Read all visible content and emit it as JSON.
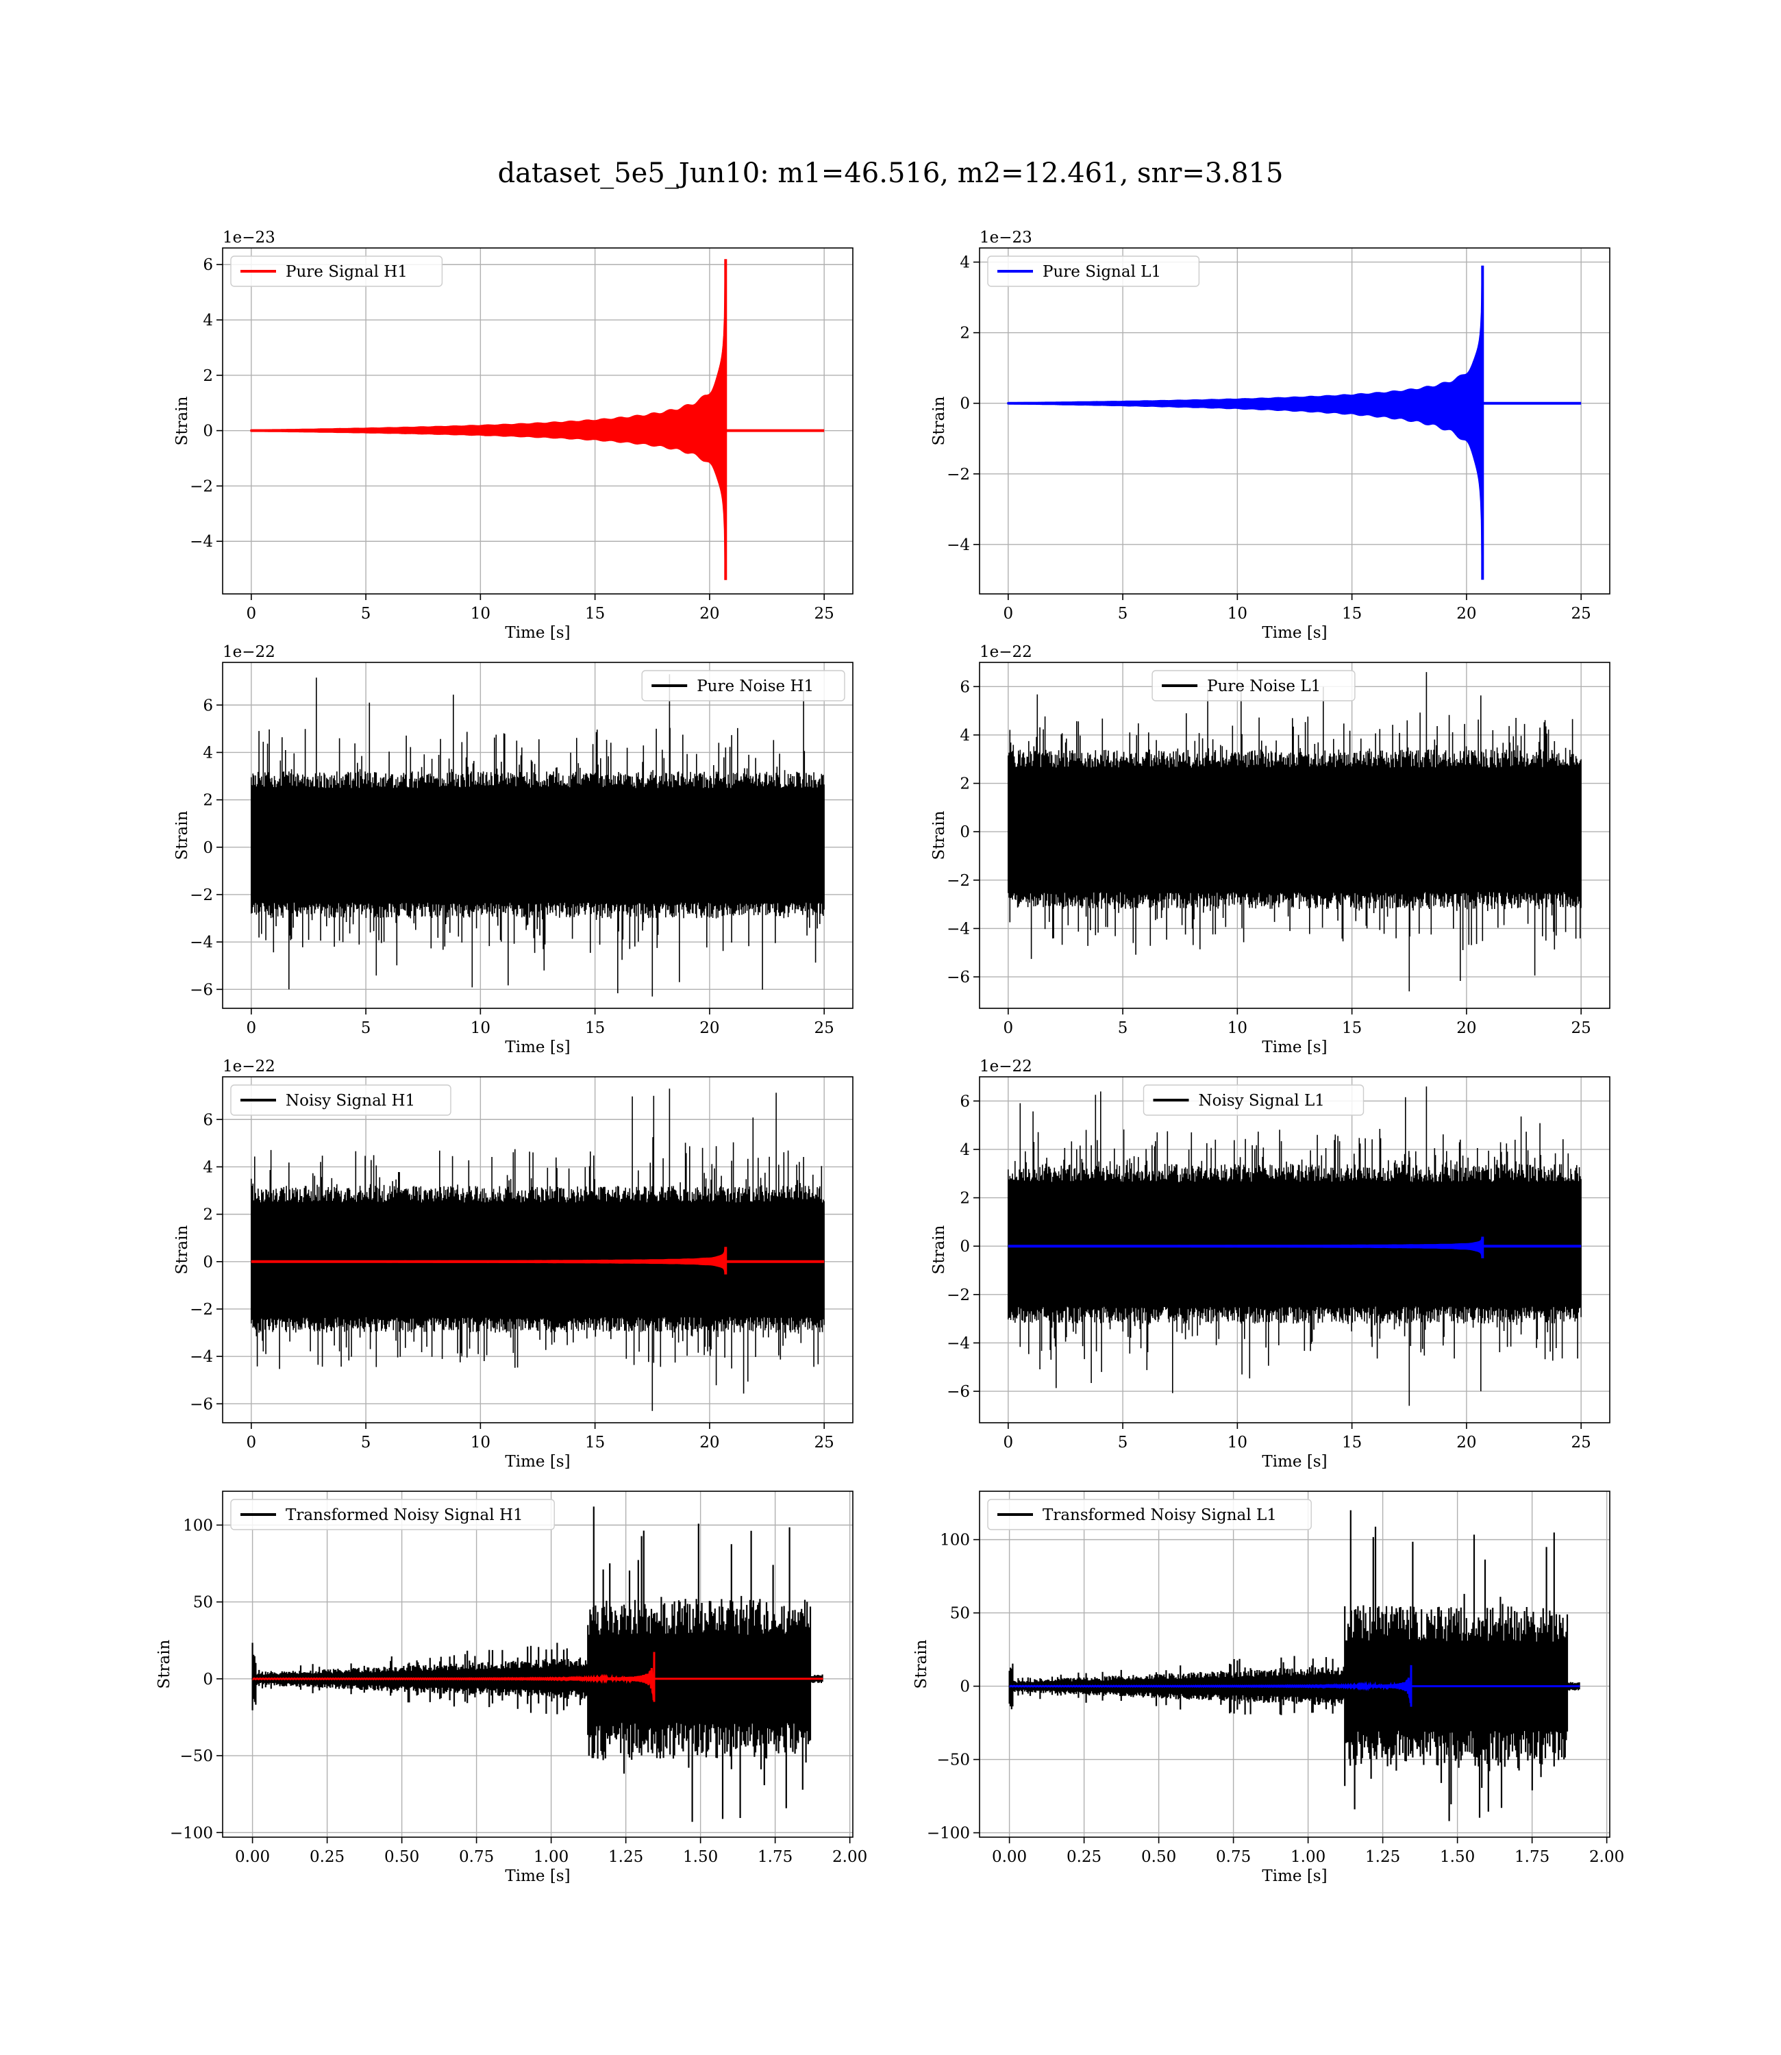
{
  "figure": {
    "title": "dataset_5e5_Jun10: m1=46.516, m2=12.461, snr=3.815"
  },
  "chart_data": [
    {
      "type": "line",
      "title": "",
      "xlabel": "Time [s]",
      "ylabel": "Strain",
      "offset_label": "1e−23",
      "xlim": [
        -1.25,
        26.25
      ],
      "ylim": [
        -5.9,
        6.6
      ],
      "xticks": [
        0,
        5,
        10,
        15,
        20,
        25
      ],
      "xtick_labels": [
        "0",
        "5",
        "10",
        "15",
        "20",
        "25"
      ],
      "yticks": [
        -4,
        -2,
        0,
        2,
        4,
        6
      ],
      "ytick_labels": [
        "−4",
        "−2",
        "0",
        "2",
        "4",
        "6"
      ],
      "grid": true,
      "legend_position": "upper-left",
      "series": [
        {
          "name": "Pure Signal H1",
          "color": "#ff0000",
          "kind": "chirp",
          "x_start": 0,
          "x_end": 25,
          "merger_time": 20.7,
          "start_amp": 0.02,
          "peak_pos": 6.2,
          "peak_neg": -5.4
        }
      ]
    },
    {
      "type": "line",
      "title": "",
      "xlabel": "Time [s]",
      "ylabel": "Strain",
      "offset_label": "1e−23",
      "xlim": [
        -1.25,
        26.25
      ],
      "ylim": [
        -5.4,
        4.4
      ],
      "xticks": [
        0,
        5,
        10,
        15,
        20,
        25
      ],
      "xtick_labels": [
        "0",
        "5",
        "10",
        "15",
        "20",
        "25"
      ],
      "yticks": [
        -4,
        -2,
        0,
        2,
        4
      ],
      "ytick_labels": [
        "−4",
        "−2",
        "0",
        "2",
        "4"
      ],
      "grid": true,
      "legend_position": "upper-left",
      "series": [
        {
          "name": "Pure Signal L1",
          "color": "#0000ff",
          "kind": "chirp",
          "x_start": 0,
          "x_end": 25,
          "merger_time": 20.7,
          "start_amp": 0.015,
          "peak_pos": 3.9,
          "peak_neg": -5.0
        }
      ]
    },
    {
      "type": "line",
      "title": "",
      "xlabel": "Time [s]",
      "ylabel": "Strain",
      "offset_label": "1e−22",
      "xlim": [
        -1.25,
        26.25
      ],
      "ylim": [
        -6.8,
        7.8
      ],
      "xticks": [
        0,
        5,
        10,
        15,
        20,
        25
      ],
      "xtick_labels": [
        "0",
        "5",
        "10",
        "15",
        "20",
        "25"
      ],
      "yticks": [
        -6,
        -4,
        -2,
        0,
        2,
        4,
        6
      ],
      "ytick_labels": [
        "−6",
        "−4",
        "−2",
        "0",
        "2",
        "4",
        "6"
      ],
      "grid": true,
      "legend_position": "upper-right",
      "series": [
        {
          "name": "Pure Noise H1",
          "color": "#000000",
          "kind": "noise",
          "x_start": 0,
          "x_end": 25,
          "band_pos": 3.2,
          "band_neg": -3.0,
          "spike_max": 7.3,
          "spike_min": -6.3
        }
      ]
    },
    {
      "type": "line",
      "title": "",
      "xlabel": "Time [s]",
      "ylabel": "Strain",
      "offset_label": "1e−22",
      "xlim": [
        -1.25,
        26.25
      ],
      "ylim": [
        -7.3,
        7.0
      ],
      "xticks": [
        0,
        5,
        10,
        15,
        20,
        25
      ],
      "xtick_labels": [
        "0",
        "5",
        "10",
        "15",
        "20",
        "25"
      ],
      "yticks": [
        -6,
        -4,
        -2,
        0,
        2,
        4,
        6
      ],
      "ytick_labels": [
        "−6",
        "−4",
        "−2",
        "0",
        "2",
        "4",
        "6"
      ],
      "grid": true,
      "legend_position": "upper-center",
      "series": [
        {
          "name": "Pure Noise L1",
          "color": "#000000",
          "kind": "noise",
          "x_start": 0,
          "x_end": 25,
          "band_pos": 3.4,
          "band_neg": -3.2,
          "spike_max": 6.6,
          "spike_min": -6.6
        }
      ]
    },
    {
      "type": "line",
      "title": "",
      "xlabel": "Time [s]",
      "ylabel": "Strain",
      "offset_label": "1e−22",
      "xlim": [
        -1.25,
        26.25
      ],
      "ylim": [
        -6.8,
        7.8
      ],
      "xticks": [
        0,
        5,
        10,
        15,
        20,
        25
      ],
      "xtick_labels": [
        "0",
        "5",
        "10",
        "15",
        "20",
        "25"
      ],
      "yticks": [
        -6,
        -4,
        -2,
        0,
        2,
        4,
        6
      ],
      "ytick_labels": [
        "−6",
        "−4",
        "−2",
        "0",
        "2",
        "4",
        "6"
      ],
      "grid": true,
      "legend_position": "upper-left",
      "series": [
        {
          "name": "Noisy Signal H1",
          "color": "#000000",
          "kind": "noise",
          "x_start": 0,
          "x_end": 25,
          "band_pos": 3.2,
          "band_neg": -3.0,
          "spike_max": 7.3,
          "spike_min": -6.3
        },
        {
          "name": "",
          "color": "#ff0000",
          "kind": "chirp",
          "x_start": 0,
          "x_end": 25,
          "merger_time": 20.7,
          "start_amp": 0.002,
          "peak_pos": 0.62,
          "peak_neg": -0.54
        }
      ]
    },
    {
      "type": "line",
      "title": "",
      "xlabel": "Time [s]",
      "ylabel": "Strain",
      "offset_label": "1e−22",
      "xlim": [
        -1.25,
        26.25
      ],
      "ylim": [
        -7.3,
        7.0
      ],
      "xticks": [
        0,
        5,
        10,
        15,
        20,
        25
      ],
      "xtick_labels": [
        "0",
        "5",
        "10",
        "15",
        "20",
        "25"
      ],
      "yticks": [
        -6,
        -4,
        -2,
        0,
        2,
        4,
        6
      ],
      "ytick_labels": [
        "−6",
        "−4",
        "−2",
        "0",
        "2",
        "4",
        "6"
      ],
      "grid": true,
      "legend_position": "upper-center",
      "series": [
        {
          "name": "Noisy Signal L1",
          "color": "#000000",
          "kind": "noise",
          "x_start": 0,
          "x_end": 25,
          "band_pos": 3.4,
          "band_neg": -3.2,
          "spike_max": 6.6,
          "spike_min": -6.6
        },
        {
          "name": "",
          "color": "#0000ff",
          "kind": "chirp",
          "x_start": 0,
          "x_end": 25,
          "merger_time": 20.7,
          "start_amp": 0.0015,
          "peak_pos": 0.39,
          "peak_neg": -0.5
        }
      ]
    },
    {
      "type": "line",
      "title": "",
      "xlabel": "Time [s]",
      "ylabel": "Strain",
      "offset_label": "",
      "xlim": [
        -0.1,
        2.01
      ],
      "ylim": [
        -103,
        122
      ],
      "xticks": [
        0.0,
        0.25,
        0.5,
        0.75,
        1.0,
        1.25,
        1.5,
        1.75,
        2.0
      ],
      "xtick_labels": [
        "0.00",
        "0.25",
        "0.50",
        "0.75",
        "1.00",
        "1.25",
        "1.50",
        "1.75",
        "2.00"
      ],
      "yticks": [
        -100,
        -50,
        0,
        50,
        100
      ],
      "ytick_labels": [
        "−100",
        "−50",
        "0",
        "50",
        "100"
      ],
      "grid": true,
      "legend_position": "upper-left",
      "series": [
        {
          "name": "Transformed Noisy Signal H1",
          "color": "#000000",
          "kind": "transformed",
          "x_start": 0,
          "x_end": 1.91,
          "low_amp_start": 4,
          "low_amp_end": 14,
          "jump_time": 1.12,
          "high_amp": 52,
          "high_end": 1.87,
          "spike_max": 112,
          "spike_min": -93
        },
        {
          "name": "",
          "color": "#ff0000",
          "kind": "chirp",
          "x_start": 0,
          "x_end": 1.91,
          "merger_time": 1.345,
          "start_amp": 0.2,
          "peak_pos": 17,
          "peak_neg": -15
        }
      ]
    },
    {
      "type": "line",
      "title": "",
      "xlabel": "Time [s]",
      "ylabel": "Strain",
      "offset_label": "",
      "xlim": [
        -0.1,
        2.01
      ],
      "ylim": [
        -103,
        133
      ],
      "xticks": [
        0.0,
        0.25,
        0.5,
        0.75,
        1.0,
        1.25,
        1.5,
        1.75,
        2.0
      ],
      "xtick_labels": [
        "0.00",
        "0.25",
        "0.50",
        "0.75",
        "1.00",
        "1.25",
        "1.50",
        "1.75",
        "2.00"
      ],
      "yticks": [
        -100,
        -50,
        0,
        50,
        100
      ],
      "ytick_labels": [
        "−100",
        "−50",
        "0",
        "50",
        "100"
      ],
      "grid": true,
      "legend_position": "upper-left",
      "series": [
        {
          "name": "Transformed Noisy Signal L1",
          "color": "#000000",
          "kind": "transformed",
          "x_start": 0,
          "x_end": 1.91,
          "low_amp_start": 4,
          "low_amp_end": 14,
          "jump_time": 1.12,
          "high_amp": 55,
          "high_end": 1.87,
          "spike_max": 120,
          "spike_min": -92
        },
        {
          "name": "",
          "color": "#0000ff",
          "kind": "chirp",
          "x_start": 0,
          "x_end": 1.91,
          "merger_time": 1.345,
          "start_amp": 0.2,
          "peak_pos": 12,
          "peak_neg": -14
        }
      ]
    }
  ]
}
